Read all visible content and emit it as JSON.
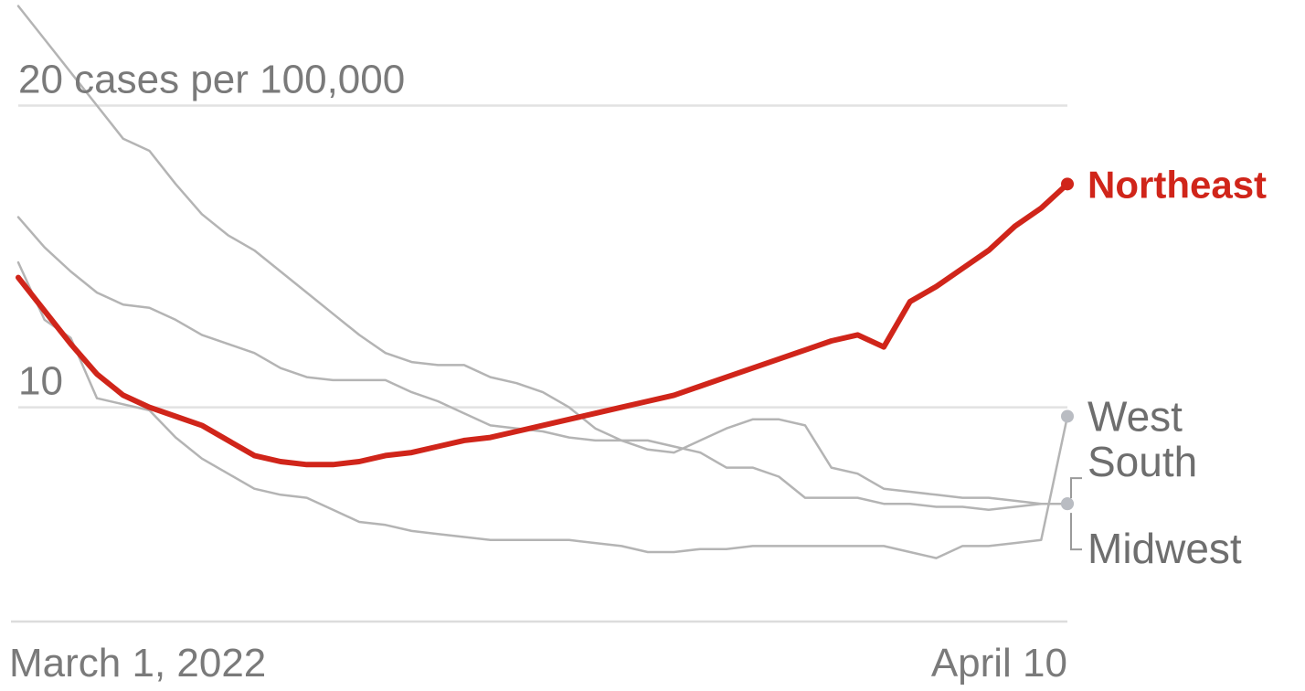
{
  "chart_data": {
    "type": "line",
    "y_ticks": [
      {
        "value": 20,
        "label": "20 cases per 100,000"
      },
      {
        "value": 10,
        "label": "10"
      }
    ],
    "x_tick_labels": {
      "start": "March 1, 2022",
      "end": "April 10"
    },
    "x": [
      "2022-03-01",
      "2022-03-02",
      "2022-03-03",
      "2022-03-04",
      "2022-03-05",
      "2022-03-06",
      "2022-03-07",
      "2022-03-08",
      "2022-03-09",
      "2022-03-10",
      "2022-03-11",
      "2022-03-12",
      "2022-03-13",
      "2022-03-14",
      "2022-03-15",
      "2022-03-16",
      "2022-03-17",
      "2022-03-18",
      "2022-03-19",
      "2022-03-20",
      "2022-03-21",
      "2022-03-22",
      "2022-03-23",
      "2022-03-24",
      "2022-03-25",
      "2022-03-26",
      "2022-03-27",
      "2022-03-28",
      "2022-03-29",
      "2022-03-30",
      "2022-03-31",
      "2022-04-01",
      "2022-04-02",
      "2022-04-03",
      "2022-04-04",
      "2022-04-05",
      "2022-04-06",
      "2022-04-07",
      "2022-04-08",
      "2022-04-09",
      "2022-04-10"
    ],
    "ylim": [
      3.2,
      23.5
    ],
    "grid": true,
    "series": [
      {
        "name": "South",
        "highlight": false,
        "color": "#b4b4b4",
        "values": [
          23.3,
          22.2,
          21.1,
          20.0,
          18.9,
          18.5,
          17.4,
          16.4,
          15.7,
          15.2,
          14.5,
          13.8,
          13.1,
          12.4,
          11.8,
          11.5,
          11.4,
          11.4,
          11.0,
          10.8,
          10.5,
          10.0,
          9.3,
          8.9,
          8.6,
          8.5,
          8.9,
          9.3,
          9.6,
          9.6,
          9.4,
          8.0,
          7.8,
          7.3,
          7.2,
          7.1,
          7.0,
          7.0,
          6.9,
          6.8,
          6.8
        ]
      },
      {
        "name": "Midwest",
        "highlight": false,
        "color": "#b4b4b4",
        "values": [
          16.3,
          15.3,
          14.5,
          13.8,
          13.4,
          13.3,
          12.9,
          12.4,
          12.1,
          11.8,
          11.3,
          11.0,
          10.9,
          10.9,
          10.9,
          10.5,
          10.2,
          9.8,
          9.4,
          9.3,
          9.2,
          9.0,
          8.9,
          8.9,
          8.9,
          8.7,
          8.5,
          8.0,
          8.0,
          7.7,
          7.0,
          7.0,
          7.0,
          6.8,
          6.8,
          6.7,
          6.7,
          6.6,
          6.7,
          6.8,
          6.8
        ]
      },
      {
        "name": "West",
        "highlight": false,
        "color": "#b4b4b4",
        "values": [
          14.8,
          12.9,
          12.3,
          10.3,
          10.1,
          9.9,
          9.0,
          8.3,
          7.8,
          7.3,
          7.1,
          7.0,
          6.6,
          6.2,
          6.1,
          5.9,
          5.8,
          5.7,
          5.6,
          5.6,
          5.6,
          5.6,
          5.5,
          5.4,
          5.2,
          5.2,
          5.3,
          5.3,
          5.4,
          5.4,
          5.4,
          5.4,
          5.4,
          5.4,
          5.2,
          5.0,
          5.4,
          5.4,
          5.5,
          5.6,
          9.7
        ]
      },
      {
        "name": "Northeast",
        "highlight": true,
        "color": "#d0251a",
        "values": [
          14.3,
          13.2,
          12.1,
          11.1,
          10.4,
          10.0,
          9.7,
          9.4,
          8.9,
          8.4,
          8.2,
          8.1,
          8.1,
          8.2,
          8.4,
          8.5,
          8.7,
          8.9,
          9.0,
          9.2,
          9.4,
          9.6,
          9.8,
          10.0,
          10.2,
          10.4,
          10.7,
          11.0,
          11.3,
          11.6,
          11.9,
          12.2,
          12.4,
          12.0,
          13.5,
          14.0,
          14.6,
          15.2,
          16.0,
          16.6,
          17.4
        ]
      }
    ]
  }
}
